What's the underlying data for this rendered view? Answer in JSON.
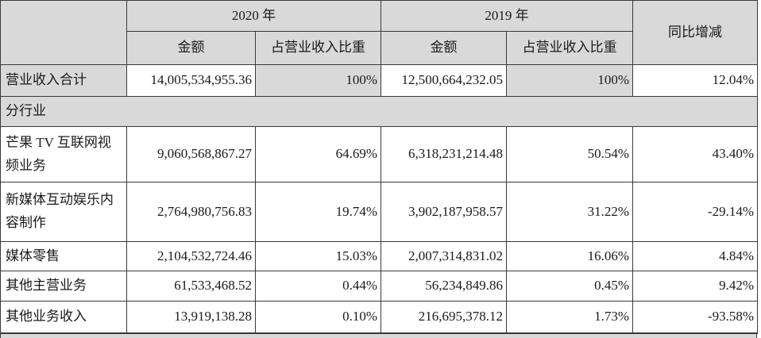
{
  "colors": {
    "shade": "#d9d9d9",
    "border": "#3a3a3a",
    "text": "#1a1a1a",
    "background": "#ffffff"
  },
  "header": {
    "corner": "",
    "year_2020": "2020 年",
    "year_2019": "2019 年",
    "yoy": "同比增减",
    "amount": "金额",
    "ratio": "占营业收入比重"
  },
  "rows": [
    {
      "kind": "total",
      "label": "营业收入合计",
      "values": [
        "14,005,534,955.36",
        "100%",
        "12,500,664,232.05",
        "100%",
        "12.04%"
      ]
    },
    {
      "kind": "section",
      "label": "分行业"
    },
    {
      "kind": "data",
      "label": "芒果 TV 互联网视频业务",
      "values": [
        "9,060,568,867.27",
        "64.69%",
        "6,318,231,214.48",
        "50.54%",
        "43.40%"
      ]
    },
    {
      "kind": "data",
      "label": "新媒体互动娱乐内容制作",
      "values": [
        "2,764,980,756.83",
        "19.74%",
        "3,902,187,958.57",
        "31.22%",
        "-29.14%"
      ]
    },
    {
      "kind": "data",
      "label": "媒体零售",
      "values": [
        "2,104,532,724.46",
        "15.03%",
        "2,007,314,831.02",
        "16.06%",
        "4.84%"
      ]
    },
    {
      "kind": "data",
      "label": "其他主营业务",
      "values": [
        "61,533,468.52",
        "0.44%",
        "56,234,849.86",
        "0.45%",
        "9.42%"
      ]
    },
    {
      "kind": "data",
      "label": "其他业务收入",
      "values": [
        "13,919,138.28",
        "0.10%",
        "216,695,378.12",
        "1.73%",
        "-93.58%"
      ]
    }
  ]
}
